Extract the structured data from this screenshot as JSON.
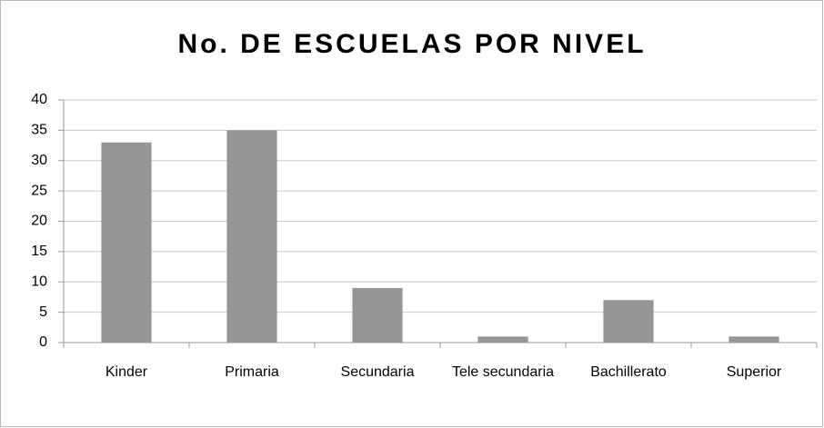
{
  "chart_data": {
    "type": "bar",
    "title": "No. DE ESCUELAS POR NIVEL",
    "categories": [
      "Kinder",
      "Primaria",
      "Secundaria",
      "Tele secundaria",
      "Bachillerato",
      "Superior"
    ],
    "values": [
      33,
      35,
      9,
      1,
      7,
      1
    ],
    "color": "#969696",
    "ylim": [
      0,
      40
    ],
    "yticks": [
      0,
      5,
      10,
      15,
      20,
      25,
      30,
      35,
      40
    ],
    "grid": true
  }
}
